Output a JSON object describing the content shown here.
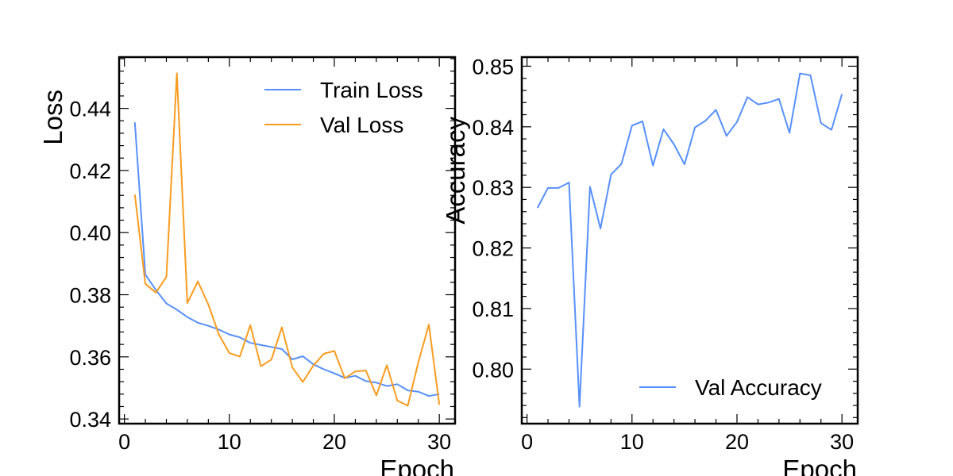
{
  "chart_data": [
    {
      "type": "line",
      "title": "",
      "xlabel": "Epoch",
      "ylabel": "Loss",
      "xlim": [
        -0.5,
        31.5
      ],
      "ylim": [
        0.3385,
        0.4565
      ],
      "xticks": [
        0,
        10,
        20,
        30
      ],
      "yticks": [
        0.34,
        0.36,
        0.38,
        0.4,
        0.42,
        0.44
      ],
      "ytick_labels": [
        "0.34",
        "0.36",
        "0.38",
        "0.40",
        "0.42",
        "0.44"
      ],
      "legend_position": "top-right",
      "grid": false,
      "x": [
        1,
        2,
        3,
        4,
        5,
        6,
        7,
        8,
        9,
        10,
        11,
        12,
        13,
        14,
        15,
        16,
        17,
        18,
        19,
        20,
        21,
        22,
        23,
        24,
        25,
        26,
        27,
        28,
        29,
        30
      ],
      "series": [
        {
          "name": "Train Loss",
          "color": "#5790fc",
          "values": [
            0.4355,
            0.3865,
            0.3815,
            0.3772,
            0.3752,
            0.3728,
            0.371,
            0.37,
            0.3688,
            0.3672,
            0.3663,
            0.3645,
            0.3638,
            0.3632,
            0.3625,
            0.3592,
            0.3602,
            0.3576,
            0.356,
            0.3547,
            0.3532,
            0.3539,
            0.3522,
            0.3517,
            0.3506,
            0.3512,
            0.3492,
            0.3488,
            0.3474,
            0.348
          ]
        },
        {
          "name": "Val Loss",
          "color": "#f89c20",
          "values": [
            0.4122,
            0.3835,
            0.3807,
            0.3857,
            0.4513,
            0.3773,
            0.3843,
            0.3768,
            0.3672,
            0.3612,
            0.3601,
            0.3702,
            0.357,
            0.3591,
            0.3695,
            0.3566,
            0.3519,
            0.3572,
            0.361,
            0.3619,
            0.3531,
            0.3553,
            0.3556,
            0.3476,
            0.3573,
            0.3459,
            0.3443,
            0.3582,
            0.3704,
            0.3446
          ]
        }
      ]
    },
    {
      "type": "line",
      "title": "",
      "xlabel": "Epoch",
      "ylabel": "Accuracy",
      "xlim": [
        -0.5,
        31.5
      ],
      "ylim": [
        0.791,
        0.8515
      ],
      "xticks": [
        0,
        10,
        20,
        30
      ],
      "yticks": [
        0.8,
        0.81,
        0.82,
        0.83,
        0.84,
        0.85
      ],
      "ytick_labels": [
        "0.80",
        "0.81",
        "0.82",
        "0.83",
        "0.84",
        "0.85"
      ],
      "legend_position": "bottom-right",
      "grid": false,
      "x": [
        1,
        2,
        3,
        4,
        5,
        6,
        7,
        8,
        9,
        10,
        11,
        12,
        13,
        14,
        15,
        16,
        17,
        18,
        19,
        20,
        21,
        22,
        23,
        24,
        25,
        26,
        27,
        28,
        29,
        30
      ],
      "series": [
        {
          "name": "Val Accuracy",
          "color": "#5790fc",
          "values": [
            0.8266,
            0.8299,
            0.8299,
            0.8308,
            0.7938,
            0.8301,
            0.8232,
            0.8321,
            0.8339,
            0.8402,
            0.8409,
            0.8336,
            0.8396,
            0.8371,
            0.8338,
            0.8399,
            0.841,
            0.8428,
            0.8385,
            0.8408,
            0.8449,
            0.8437,
            0.844,
            0.8446,
            0.839,
            0.8488,
            0.8485,
            0.8406,
            0.8395,
            0.8454
          ]
        }
      ]
    }
  ]
}
